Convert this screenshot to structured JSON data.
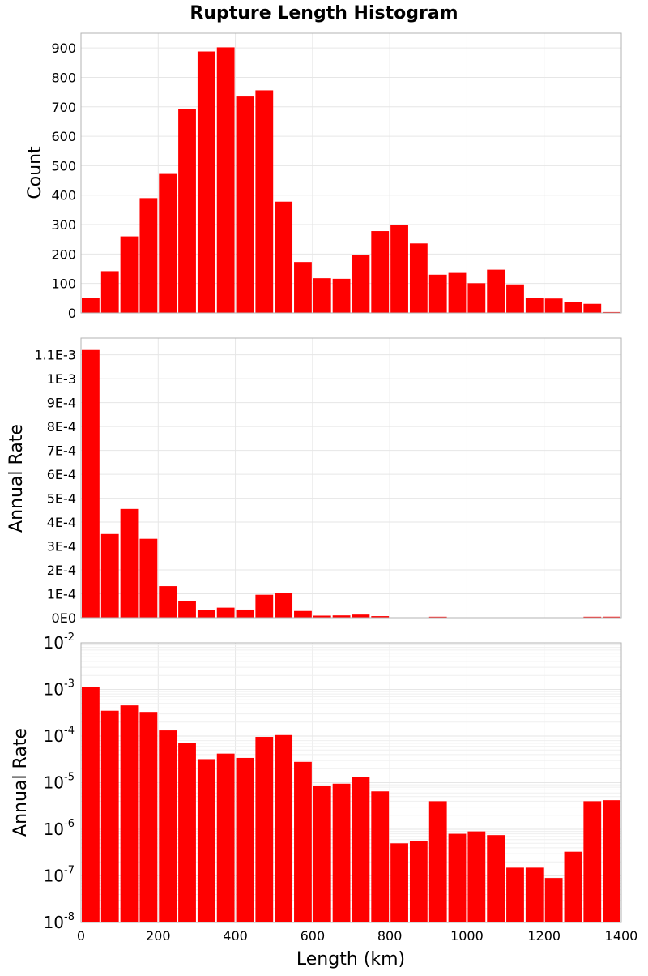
{
  "title": "Rupture Length Histogram",
  "colors": {
    "bar": "#ff0000",
    "grid": "#e6e6e6",
    "frame": "#b3b3b3"
  },
  "chart_data": [
    {
      "type": "bar",
      "ylabel": "Count",
      "xlim": [
        0,
        1400
      ],
      "ylim": [
        0,
        950
      ],
      "yticks": [
        0,
        100,
        200,
        300,
        400,
        500,
        600,
        700,
        800,
        900
      ],
      "ytick_labels": [
        "0",
        "100",
        "200",
        "300",
        "400",
        "500",
        "600",
        "700",
        "800",
        "900"
      ],
      "bin_width": 50,
      "x": [
        25,
        75,
        125,
        175,
        225,
        275,
        325,
        375,
        425,
        475,
        525,
        575,
        625,
        675,
        725,
        775,
        825,
        875,
        925,
        975,
        1025,
        1075,
        1125,
        1175,
        1225,
        1275,
        1325,
        1375
      ],
      "values": [
        50,
        142,
        260,
        390,
        472,
        692,
        888,
        902,
        735,
        756,
        378,
        173,
        118,
        116,
        197,
        278,
        298,
        236,
        130,
        136,
        101,
        147,
        97,
        52,
        49,
        37,
        31,
        3
      ]
    },
    {
      "type": "bar",
      "ylabel": "Annual Rate",
      "xlim": [
        0,
        1400
      ],
      "ylim": [
        0,
        0.00117
      ],
      "yticks": [
        0,
        0.0001,
        0.0002,
        0.0003,
        0.0004,
        0.0005,
        0.0006,
        0.0007,
        0.0008,
        0.0009,
        0.001,
        0.0011
      ],
      "ytick_labels": [
        "0E0",
        "1E-4",
        "2E-4",
        "3E-4",
        "4E-4",
        "5E-4",
        "6E-4",
        "7E-4",
        "8E-4",
        "9E-4",
        "1E-3",
        "1.1E-3"
      ],
      "bin_width": 50,
      "x": [
        25,
        75,
        125,
        175,
        225,
        275,
        325,
        375,
        425,
        475,
        525,
        575,
        625,
        675,
        725,
        775,
        825,
        875,
        925,
        975,
        1025,
        1075,
        1125,
        1175,
        1225,
        1275,
        1325,
        1375
      ],
      "values": [
        0.00112,
        0.00035,
        0.000455,
        0.00033,
        0.000132,
        7e-05,
        3.2e-05,
        4.2e-05,
        3.4e-05,
        9.6e-05,
        0.000105,
        2.8e-05,
        8.5e-06,
        9.5e-06,
        1.3e-05,
        6.5e-06,
        5e-07,
        5.5e-07,
        4e-06,
        8e-07,
        9e-07,
        7.5e-07,
        1.5e-07,
        1.5e-07,
        9e-08,
        3.3e-07,
        4e-06,
        4.2e-06
      ]
    },
    {
      "type": "bar",
      "ylabel": "Annual Rate",
      "xlabel": "Length (km)",
      "log_y": true,
      "xlim": [
        0,
        1400
      ],
      "ylim": [
        1e-08,
        0.01
      ],
      "ytick_exponents": [
        -8,
        -7,
        -6,
        -5,
        -4,
        -3,
        -2
      ],
      "xticks": [
        0,
        200,
        400,
        600,
        800,
        1000,
        1200,
        1400
      ],
      "xtick_labels": [
        "0",
        "200",
        "400",
        "600",
        "800",
        "1000",
        "1200",
        "1400"
      ],
      "bin_width": 50,
      "x": [
        25,
        75,
        125,
        175,
        225,
        275,
        325,
        375,
        425,
        475,
        525,
        575,
        625,
        675,
        725,
        775,
        825,
        875,
        925,
        975,
        1025,
        1075,
        1125,
        1175,
        1225,
        1275,
        1325,
        1375
      ],
      "values": [
        0.00112,
        0.00035,
        0.000455,
        0.00033,
        0.000132,
        7e-05,
        3.2e-05,
        4.2e-05,
        3.4e-05,
        9.6e-05,
        0.000105,
        2.8e-05,
        8.5e-06,
        9.5e-06,
        1.3e-05,
        6.5e-06,
        5e-07,
        5.5e-07,
        4e-06,
        8e-07,
        9e-07,
        7.5e-07,
        1.5e-07,
        1.5e-07,
        9e-08,
        3.3e-07,
        4e-06,
        4.2e-06
      ]
    }
  ]
}
